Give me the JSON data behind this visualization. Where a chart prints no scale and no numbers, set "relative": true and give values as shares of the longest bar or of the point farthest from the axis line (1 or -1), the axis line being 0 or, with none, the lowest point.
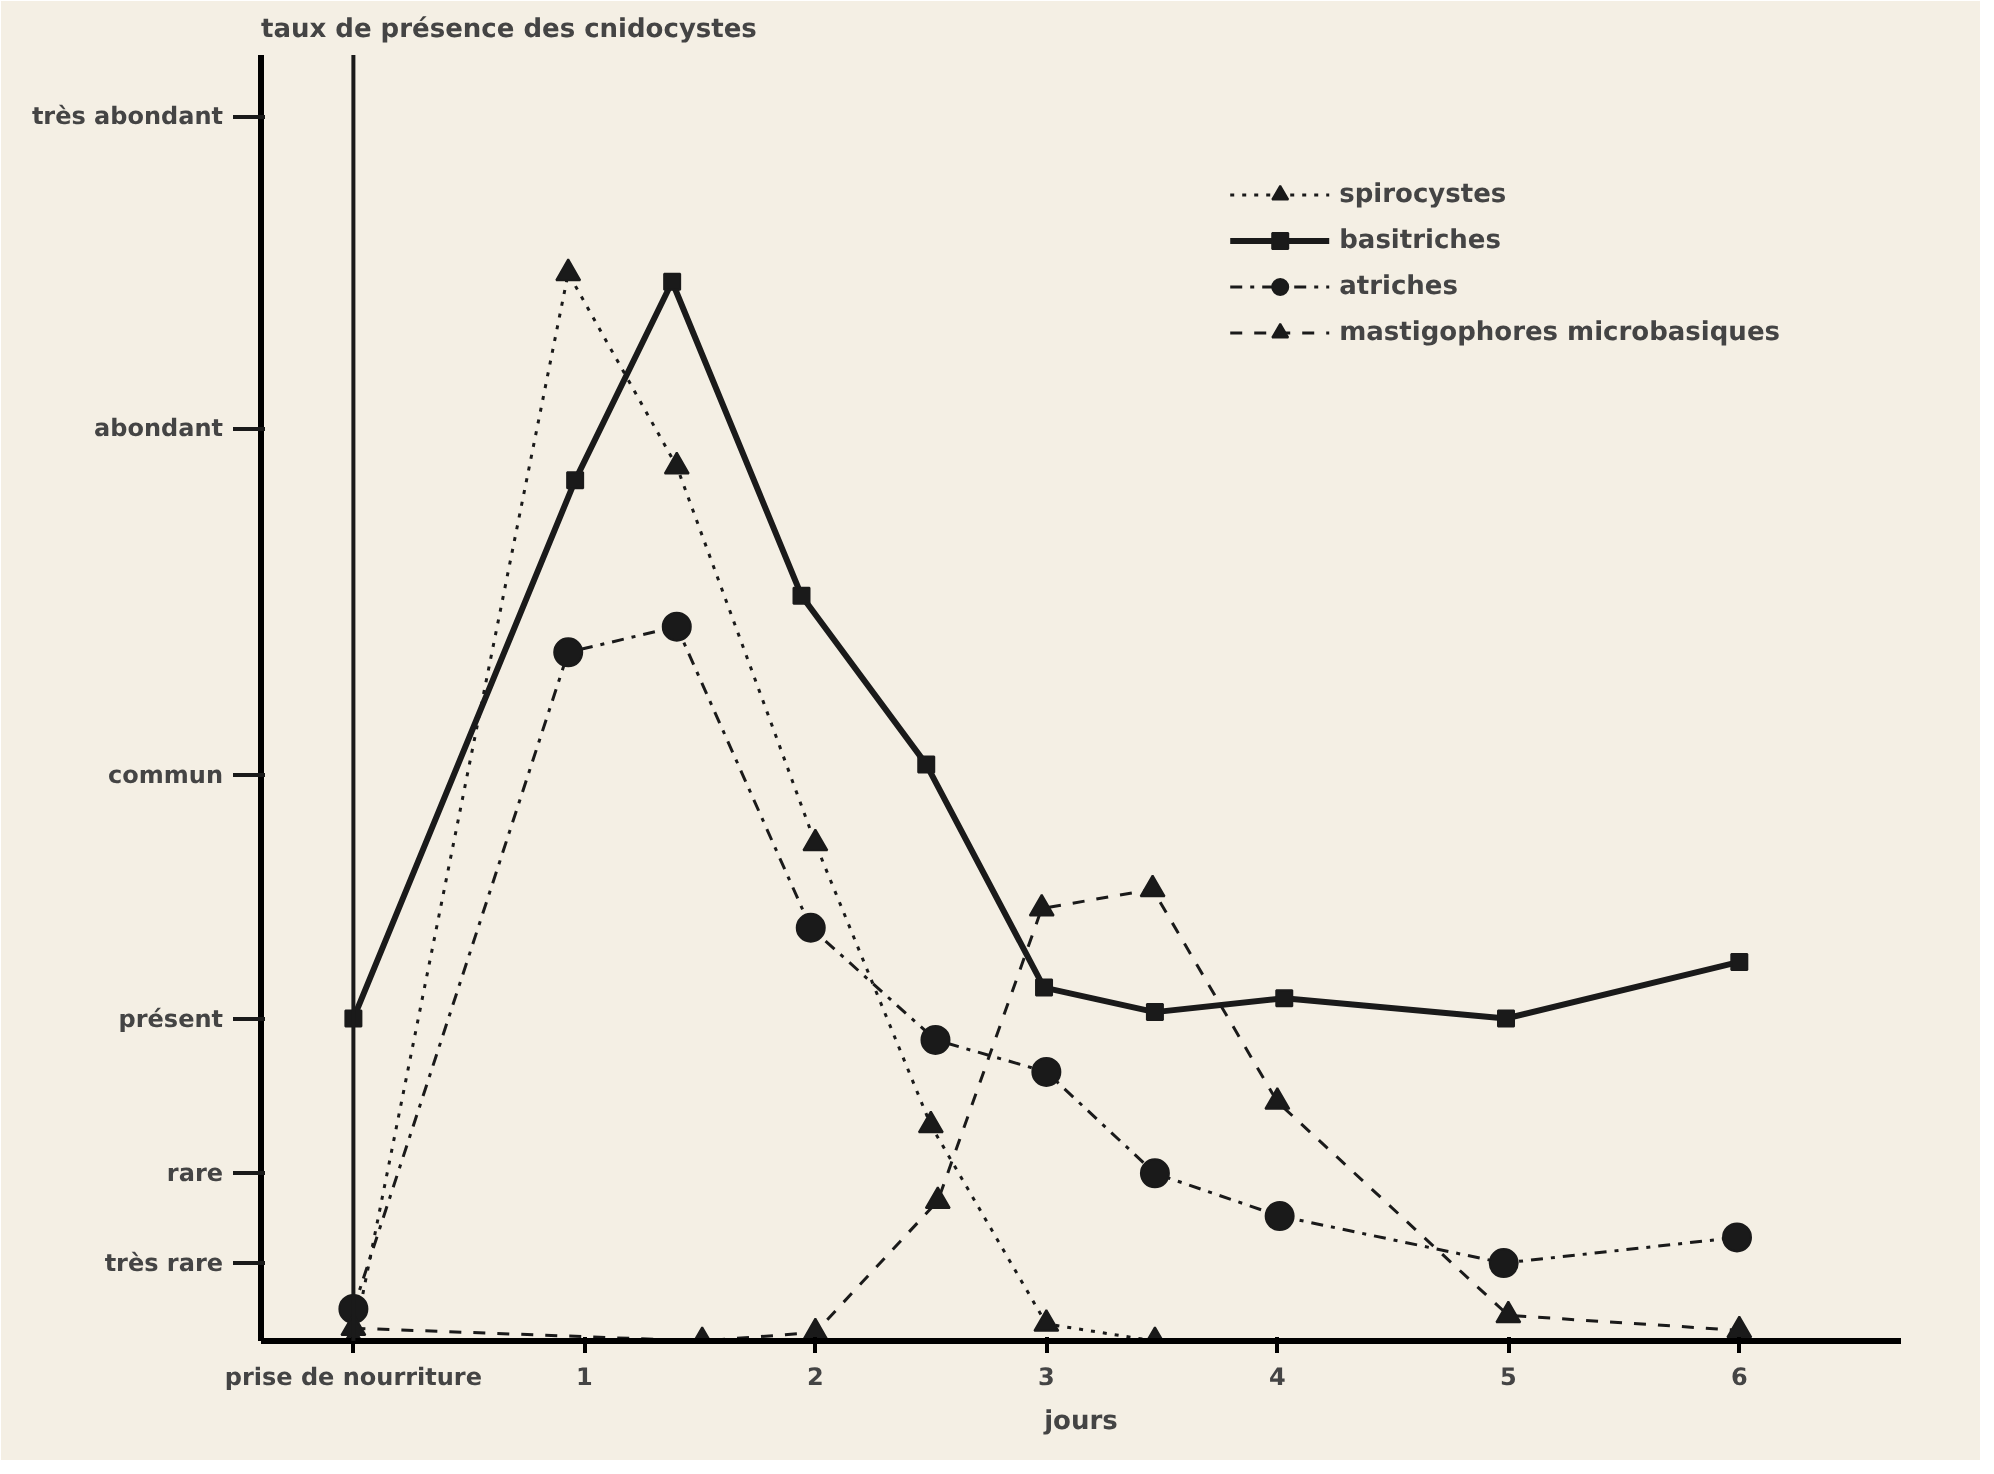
{
  "chart_data": {
    "type": "line",
    "relative": true,
    "xlabel": "jours",
    "annotations": [
      "taux de présence des cnidocystes"
    ],
    "xlim": [
      -0.4,
      6.7
    ],
    "xticks": [
      {
        "value": 0,
        "label": "prise de nourriture"
      },
      1,
      2,
      3,
      4,
      5,
      6
    ],
    "grid": false,
    "legend": "top right",
    "ref_lines": [
      {
        "axis": "x",
        "value": 0
      },
      {
        "axis": "y",
        "value": 0.073,
        "label": "très rare"
      },
      {
        "axis": "y",
        "value": 0.157,
        "label": "rare"
      },
      {
        "axis": "y",
        "value": 0.302,
        "label": "présent"
      },
      {
        "axis": "y",
        "value": 0.53,
        "label": "commun"
      },
      {
        "axis": "y",
        "value": 0.855,
        "label": "abondant"
      },
      {
        "axis": "y",
        "value": 1.147,
        "label": "très abondant"
      }
    ],
    "series": [
      {
        "name": "spirocystes",
        "color": "#1a1a1a",
        "marker": "triangle",
        "line_style": "dotted",
        "x": [
          0,
          0.93,
          1.4,
          2.0,
          2.5,
          3.0,
          3.47
        ],
        "values": [
          0,
          1,
          0.819,
          0.466,
          0.202,
          0.016,
          0
        ]
      },
      {
        "name": "basitriches",
        "color": "#1a1a1a",
        "marker": "square",
        "line_style": "solid",
        "x": [
          0,
          0.96,
          1.38,
          1.94,
          2.48,
          2.99,
          3.47,
          4.03,
          4.99,
          6.0
        ],
        "values": [
          0.302,
          0.806,
          0.992,
          0.698,
          0.54,
          0.331,
          0.308,
          0.321,
          0.302,
          0.355
        ]
      },
      {
        "name": "atriches",
        "color": "#1a1a1a",
        "marker": "circle",
        "line_style": "dashdot",
        "x": [
          0,
          0.93,
          1.4,
          1.98,
          2.52,
          3.0,
          3.47,
          4.01,
          4.98,
          5.99
        ],
        "values": [
          0.03,
          0.645,
          0.669,
          0.387,
          0.282,
          0.252,
          0.157,
          0.117,
          0.073,
          0.097
        ]
      },
      {
        "name": "mastigophores microbasiques",
        "color": "#1a1a1a",
        "marker": "triangle",
        "line_style": "dashed",
        "x": [
          0,
          1.51,
          2.0,
          2.53,
          2.98,
          3.46,
          4.0,
          5.0,
          6.0
        ],
        "values": [
          0.012,
          0,
          0.008,
          0.131,
          0.405,
          0.423,
          0.224,
          0.024,
          0.01
        ]
      }
    ]
  }
}
